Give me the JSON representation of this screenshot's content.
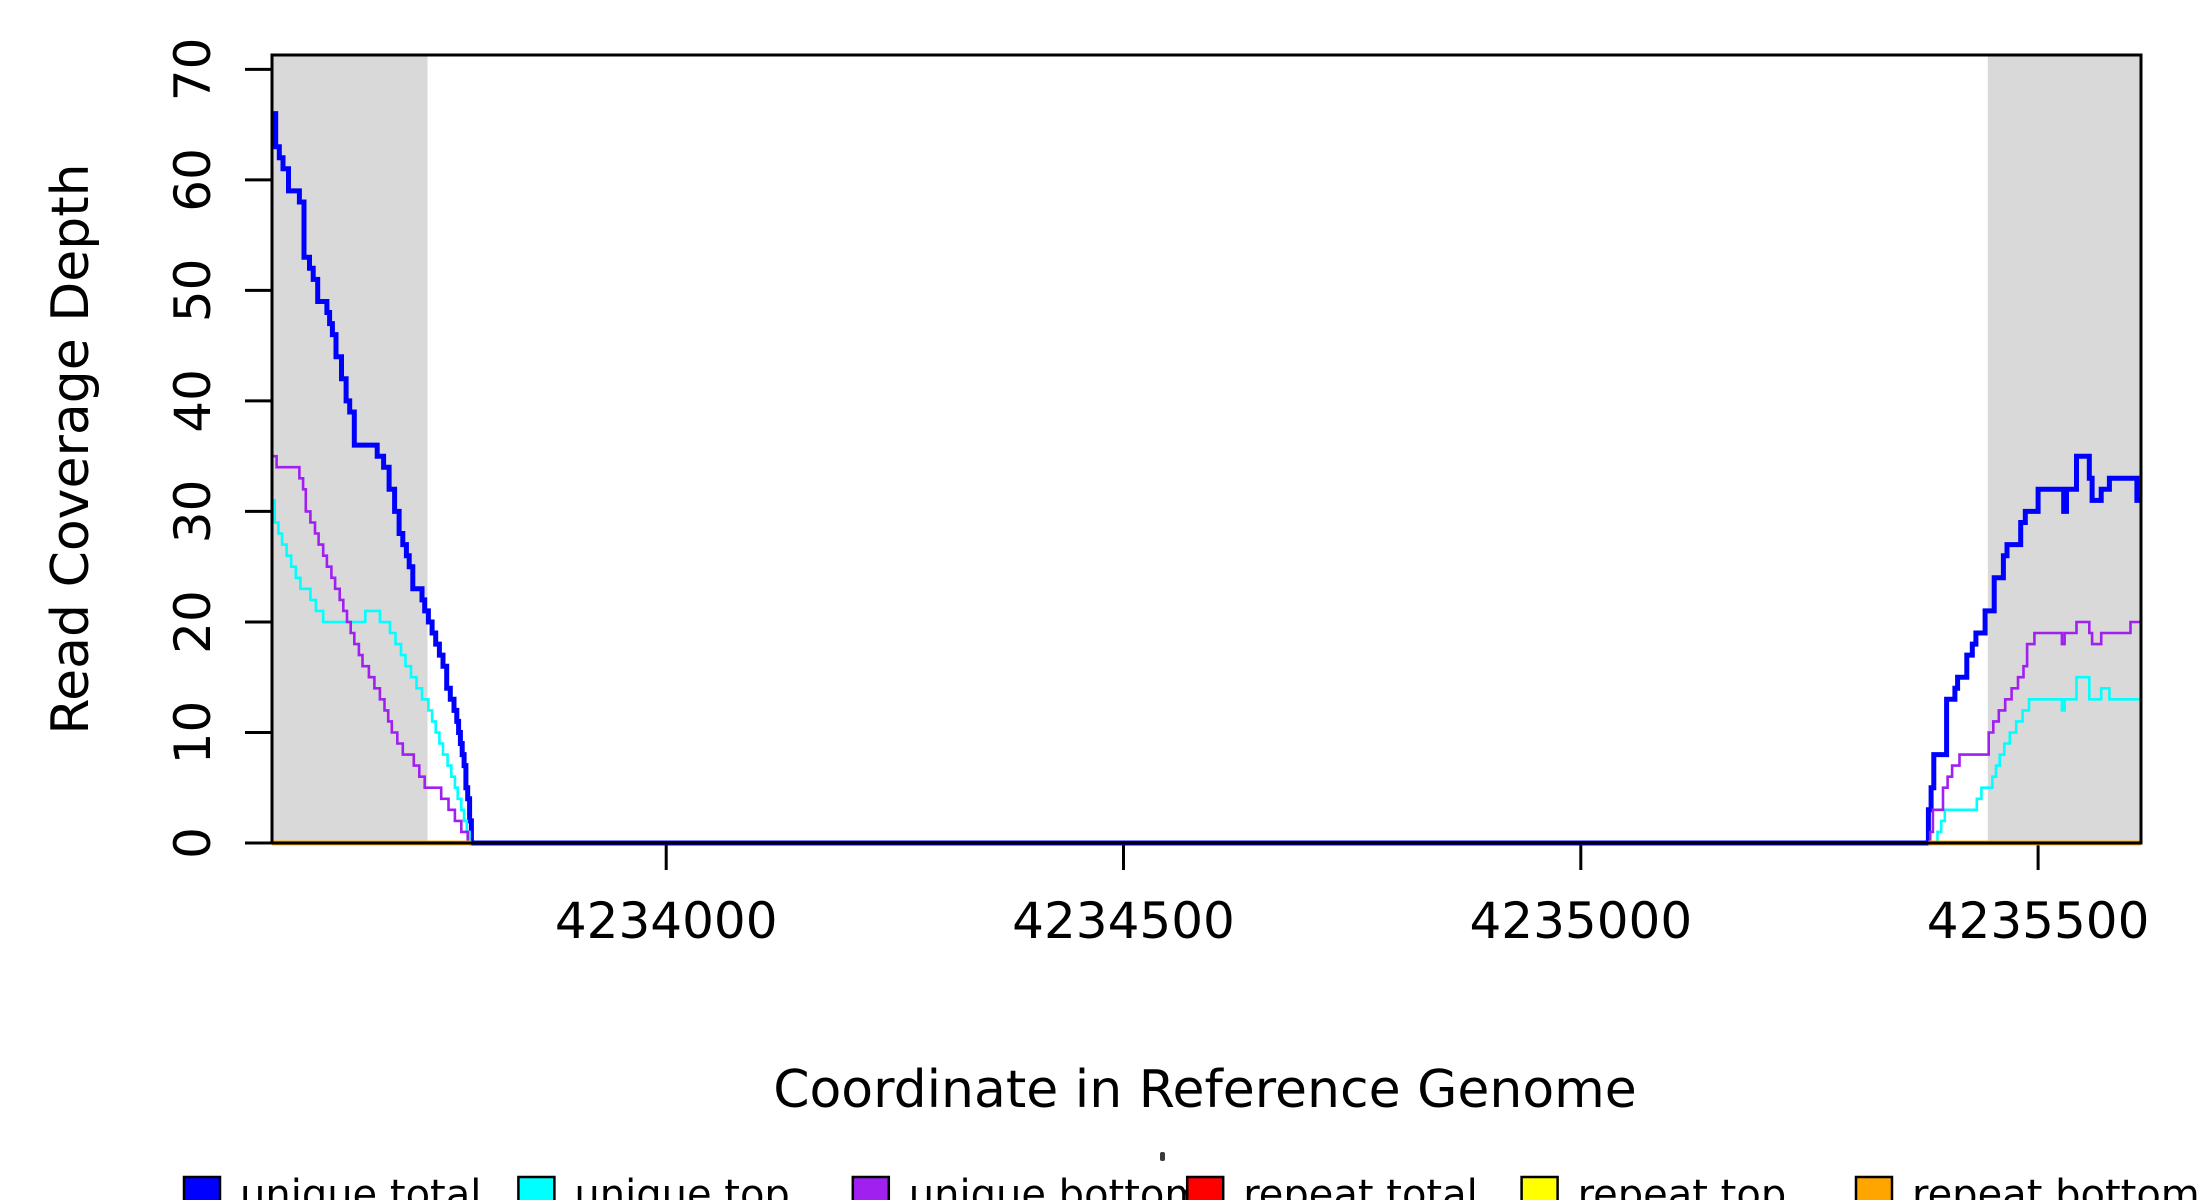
{
  "figure": {
    "background": "#FFFFFF"
  },
  "chart_data": {
    "type": "line",
    "subtype": "step-after-coverage-plot",
    "title": "",
    "xlabel": "Coordinate in Reference Genome",
    "ylabel": "Read Coverage Depth",
    "xlim": [
      4233569,
      4235612.5
    ],
    "ylim": [
      0,
      71.3
    ],
    "grid": false,
    "x_ticks": [
      4234000,
      4234500,
      4235000,
      4235500
    ],
    "x_tick_labels": [
      "4234000",
      "4234500",
      "4235000",
      "4235500"
    ],
    "y_ticks": [
      0,
      10,
      20,
      30,
      40,
      50,
      60,
      70
    ],
    "y_tick_labels": [
      "0",
      "10",
      "20",
      "30",
      "40",
      "50",
      "60",
      "70"
    ],
    "shaded_regions": [
      {
        "name": "repeat-region-left",
        "x0": 4233569,
        "x1": 4233739,
        "color": "#D9D9D9"
      },
      {
        "name": "repeat-region-right",
        "x0": 4235445,
        "x1": 4235612.5,
        "color": "#D9D9D9"
      }
    ],
    "series": [
      {
        "name": "unique total",
        "color": "#0000FF",
        "width": 5,
        "segments": [
          [
            [
              4233569,
              66
            ],
            [
              4233573,
              63
            ],
            [
              4233577,
              62
            ],
            [
              4233581,
              61
            ],
            [
              4233587,
              59
            ],
            [
              4233599,
              58
            ],
            [
              4233604,
              53
            ],
            [
              4233610,
              52
            ],
            [
              4233614,
              51
            ],
            [
              4233619,
              49
            ],
            [
              4233629,
              48
            ],
            [
              4233632,
              47
            ],
            [
              4233635,
              46
            ],
            [
              4233639,
              44
            ],
            [
              4233645,
              42
            ],
            [
              4233650,
              40
            ],
            [
              4233654,
              39
            ],
            [
              4233659,
              36
            ],
            [
              4233684,
              35
            ],
            [
              4233691,
              34
            ],
            [
              4233697,
              32
            ],
            [
              4233703,
              30
            ],
            [
              4233708,
              28
            ],
            [
              4233712,
              27
            ],
            [
              4233716,
              26
            ],
            [
              4233719,
              25
            ],
            [
              4233723,
              23
            ],
            [
              4233733,
              22
            ],
            [
              4233736,
              21
            ],
            [
              4233740,
              20
            ],
            [
              4233744,
              19
            ],
            [
              4233748,
              18
            ],
            [
              4233752,
              17
            ],
            [
              4233756,
              16
            ],
            [
              4233760,
              14
            ],
            [
              4233764,
              13
            ],
            [
              4233768,
              12
            ],
            [
              4233771,
              11
            ],
            [
              4233773,
              10
            ],
            [
              4233775,
              9
            ],
            [
              4233777,
              8
            ],
            [
              4233779,
              7
            ],
            [
              4233781,
              5
            ],
            [
              4233783,
              4
            ],
            [
              4233785,
              2
            ],
            [
              4233787,
              0
            ],
            [
              4235380,
              3
            ],
            [
              4235383,
              5
            ],
            [
              4235386,
              8
            ],
            [
              4235396,
              8
            ],
            [
              4235400,
              13
            ],
            [
              4235406,
              13
            ],
            [
              4235409,
              14
            ],
            [
              4235412,
              15
            ],
            [
              4235419,
              15
            ],
            [
              4235422,
              17
            ],
            [
              4235428,
              18
            ],
            [
              4235432,
              19
            ],
            [
              4235438,
              19
            ],
            [
              4235442,
              21
            ],
            [
              4235448,
              21
            ],
            [
              4235452,
              24
            ],
            [
              4235458,
              24
            ],
            [
              4235462,
              26
            ],
            [
              4235466,
              27
            ],
            [
              4235477,
              27
            ],
            [
              4235481,
              29
            ],
            [
              4235486,
              30
            ],
            [
              4235495,
              30
            ],
            [
              4235500,
              32
            ],
            [
              4235526,
              32
            ],
            [
              4235528,
              30
            ],
            [
              4235531,
              32
            ],
            [
              4235540,
              32
            ],
            [
              4235542,
              35
            ],
            [
              4235553,
              35
            ],
            [
              4235556,
              33
            ],
            [
              4235559,
              31
            ],
            [
              4235567,
              31
            ],
            [
              4235569,
              32
            ],
            [
              4235576,
              32
            ],
            [
              4235578,
              33
            ],
            [
              4235604,
              33
            ],
            [
              4235608,
              31
            ],
            [
              4235612.5,
              31
            ]
          ]
        ]
      },
      {
        "name": "unique top",
        "color": "#00FFFF",
        "width": 2.6,
        "segments": [
          [
            [
              4233569,
              31
            ],
            [
              4233572,
              29
            ],
            [
              4233576,
              28
            ],
            [
              4233580,
              27
            ],
            [
              4233585,
              26
            ],
            [
              4233590,
              25
            ],
            [
              4233595,
              24
            ],
            [
              4233600,
              23
            ],
            [
              4233611,
              22
            ],
            [
              4233617,
              21
            ],
            [
              4233625,
              20
            ],
            [
              4233671,
              21
            ],
            [
              4233687,
              20
            ],
            [
              4233698,
              19
            ],
            [
              4233704,
              18
            ],
            [
              4233710,
              17
            ],
            [
              4233715,
              16
            ],
            [
              4233721,
              15
            ],
            [
              4233727,
              14
            ],
            [
              4233733,
              13
            ],
            [
              4233740,
              12
            ],
            [
              4233744,
              11
            ],
            [
              4233748,
              10
            ],
            [
              4233752,
              9
            ],
            [
              4233756,
              8
            ],
            [
              4233761,
              7
            ],
            [
              4233765,
              6
            ],
            [
              4233769,
              5
            ],
            [
              4233772,
              4
            ],
            [
              4233776,
              3
            ],
            [
              4233779,
              2
            ],
            [
              4233782,
              1
            ],
            [
              4233785,
              0
            ],
            [
              4235390,
              1
            ],
            [
              4235394,
              2
            ],
            [
              4235398,
              3
            ],
            [
              4235428,
              3
            ],
            [
              4235433,
              4
            ],
            [
              4235438,
              5
            ],
            [
              4235446,
              5
            ],
            [
              4235450,
              6
            ],
            [
              4235454,
              7
            ],
            [
              4235458,
              8
            ],
            [
              4235463,
              9
            ],
            [
              4235469,
              10
            ],
            [
              4235476,
              11
            ],
            [
              4235483,
              12
            ],
            [
              4235490,
              13
            ],
            [
              4235524,
              13
            ],
            [
              4235526,
              12
            ],
            [
              4235529,
              13
            ],
            [
              4235542,
              15
            ],
            [
              4235553,
              15
            ],
            [
              4235556,
              13
            ],
            [
              4235566,
              13
            ],
            [
              4235569,
              14
            ],
            [
              4235575,
              14
            ],
            [
              4235578,
              13
            ],
            [
              4235612.5,
              13
            ]
          ]
        ]
      },
      {
        "name": "unique bottom",
        "color": "#A020F0",
        "width": 2.6,
        "segments": [
          [
            [
              4233569,
              35
            ],
            [
              4233574,
              34
            ],
            [
              4233599,
              33
            ],
            [
              4233603,
              32
            ],
            [
              4233606,
              30
            ],
            [
              4233611,
              29
            ],
            [
              4233616,
              28
            ],
            [
              4233620,
              27
            ],
            [
              4233625,
              26
            ],
            [
              4233629,
              25
            ],
            [
              4233634,
              24
            ],
            [
              4233638,
              23
            ],
            [
              4233643,
              22
            ],
            [
              4233647,
              21
            ],
            [
              4233651,
              20
            ],
            [
              4233655,
              19
            ],
            [
              4233659,
              18
            ],
            [
              4233664,
              17
            ],
            [
              4233668,
              16
            ],
            [
              4233675,
              15
            ],
            [
              4233681,
              14
            ],
            [
              4233687,
              13
            ],
            [
              4233692,
              12
            ],
            [
              4233696,
              11
            ],
            [
              4233700,
              10
            ],
            [
              4233706,
              9
            ],
            [
              4233712,
              8
            ],
            [
              4233724,
              7
            ],
            [
              4233730,
              6
            ],
            [
              4233736,
              5
            ],
            [
              4233754,
              4
            ],
            [
              4233762,
              3
            ],
            [
              4233769,
              2
            ],
            [
              4233776,
              1
            ],
            [
              4233783,
              0
            ],
            [
              4235382,
              1
            ],
            [
              4235385,
              3
            ],
            [
              4235392,
              3
            ],
            [
              4235396,
              5
            ],
            [
              4235401,
              6
            ],
            [
              4235406,
              7
            ],
            [
              4235410,
              7
            ],
            [
              4235414,
              8
            ],
            [
              4235442,
              8
            ],
            [
              4235446,
              10
            ],
            [
              4235451,
              11
            ],
            [
              4235457,
              12
            ],
            [
              4235464,
              13
            ],
            [
              4235471,
              14
            ],
            [
              4235478,
              15
            ],
            [
              4235484,
              16
            ],
            [
              4235488,
              18
            ],
            [
              4235496,
              19
            ],
            [
              4235523,
              19
            ],
            [
              4235526,
              18
            ],
            [
              4235529,
              19
            ],
            [
              4235540,
              19
            ],
            [
              4235542,
              20
            ],
            [
              4235553,
              20
            ],
            [
              4235556,
              19
            ],
            [
              4235559,
              18
            ],
            [
              4235567,
              18
            ],
            [
              4235569,
              19
            ],
            [
              4235598,
              19
            ],
            [
              4235601,
              20
            ],
            [
              4235612.5,
              20
            ]
          ]
        ]
      },
      {
        "name": "repeat total",
        "color": "#FF0000",
        "width": 4.5,
        "segments": [
          [
            [
              4233569,
              0
            ],
            [
              4233787,
              0
            ]
          ],
          [
            [
              4235380,
              0
            ],
            [
              4235612.5,
              0
            ]
          ]
        ]
      },
      {
        "name": "repeat top",
        "color": "#FFFF00",
        "width": 4.5,
        "segments": [
          [
            [
              4233569,
              0
            ],
            [
              4233787,
              0
            ]
          ],
          [
            [
              4235380,
              0
            ],
            [
              4235612.5,
              0
            ]
          ]
        ]
      },
      {
        "name": "repeat bottom",
        "color": "#FFA500",
        "width": 4.5,
        "segments": [
          [
            [
              4233569,
              0
            ],
            [
              4233787,
              0
            ]
          ],
          [
            [
              4235380,
              0
            ],
            [
              4235612.5,
              0
            ]
          ]
        ]
      }
    ],
    "legend_position": "bottom"
  },
  "legend": {
    "items": [
      {
        "label": "unique total",
        "color": "#0000FF"
      },
      {
        "label": "unique top",
        "color": "#00FFFF"
      },
      {
        "label": "unique bottom",
        "color": "#A020F0"
      },
      {
        "label": "repeat total",
        "color": "#FF0000"
      },
      {
        "label": "repeat top",
        "color": "#FFFF00"
      },
      {
        "label": "repeat bottom",
        "color": "#FFA500"
      }
    ]
  },
  "colors": {
    "axis": "#000000",
    "repeat_band": "#D9D9D9",
    "background": "#FFFFFF"
  }
}
